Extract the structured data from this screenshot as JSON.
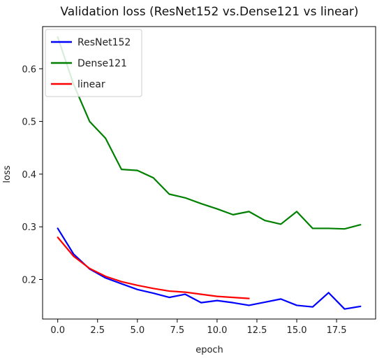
{
  "chart_data": {
    "type": "line",
    "title": "Validation loss (ResNet152 vs.Dense121 vs linear)",
    "xlabel": "epoch",
    "ylabel": "loss",
    "xlim": [
      -0.95,
      19.95
    ],
    "ylim": [
      0.125,
      0.68
    ],
    "xticks": [
      0.0,
      2.5,
      5.0,
      7.5,
      10.0,
      12.5,
      15.0,
      17.5
    ],
    "xtick_labels": [
      "0.0",
      "2.5",
      "5.0",
      "7.5",
      "10.0",
      "12.5",
      "15.0",
      "17.5"
    ],
    "yticks": [
      0.2,
      0.3,
      0.4,
      0.5,
      0.6
    ],
    "ytick_labels": [
      "0.2",
      "0.3",
      "0.4",
      "0.5",
      "0.6"
    ],
    "grid": false,
    "legend_position": "top-left",
    "series": [
      {
        "name": "ResNet152",
        "color": "#0000ff",
        "x": [
          0,
          1,
          2,
          3,
          4,
          5,
          6,
          7,
          8,
          9,
          10,
          11,
          12,
          13,
          14,
          15,
          16,
          17,
          18,
          19
        ],
        "y": [
          0.297,
          0.248,
          0.22,
          0.203,
          0.192,
          0.181,
          0.174,
          0.166,
          0.172,
          0.156,
          0.16,
          0.156,
          0.151,
          0.157,
          0.163,
          0.151,
          0.148,
          0.175,
          0.144,
          0.149
        ]
      },
      {
        "name": "Dense121",
        "color": "#008000",
        "x": [
          0,
          1,
          2,
          3,
          4,
          5,
          6,
          7,
          8,
          9,
          10,
          11,
          12,
          13,
          14,
          15,
          16,
          17,
          18,
          19
        ],
        "y": [
          0.66,
          0.57,
          0.5,
          0.468,
          0.409,
          0.407,
          0.393,
          0.362,
          0.355,
          0.344,
          0.334,
          0.323,
          0.329,
          0.312,
          0.305,
          0.329,
          0.297,
          0.297,
          0.296,
          0.304
        ]
      },
      {
        "name": "linear",
        "color": "#ff0000",
        "x": [
          0,
          1,
          2,
          3,
          4,
          5,
          6,
          7,
          8,
          9,
          10,
          11,
          12
        ],
        "y": [
          0.28,
          0.244,
          0.221,
          0.206,
          0.196,
          0.189,
          0.183,
          0.178,
          0.176,
          0.172,
          0.168,
          0.166,
          0.164
        ]
      }
    ]
  }
}
